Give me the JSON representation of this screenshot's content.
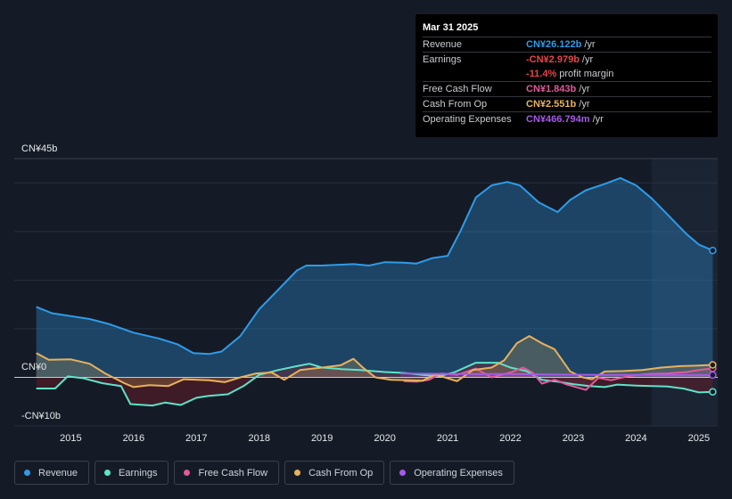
{
  "chart_data": {
    "type": "area",
    "y_axis_labels": {
      "top": "CN¥45b",
      "zero": "CN¥0",
      "bottom": "-CN¥10b"
    },
    "ylim": [
      -10,
      45
    ],
    "x_tick_labels": [
      "2015",
      "2016",
      "2017",
      "2018",
      "2019",
      "2020",
      "2021",
      "2022",
      "2023",
      "2024",
      "2025"
    ],
    "x_ticks": [
      2015,
      2016,
      2017,
      2018,
      2019,
      2020,
      2021,
      2022,
      2023,
      2024,
      2025
    ],
    "xlim": [
      2014.1,
      2025.3
    ],
    "forecast_shade_start": 2024.25,
    "series": [
      {
        "name": "Revenue",
        "color": "#2f9be9",
        "points": [
          [
            2014.45,
            14.5
          ],
          [
            2014.7,
            13.2
          ],
          [
            2015.0,
            12.6
          ],
          [
            2015.3,
            12.0
          ],
          [
            2015.6,
            11.0
          ],
          [
            2016.0,
            9.2
          ],
          [
            2016.4,
            8.0
          ],
          [
            2016.7,
            6.8
          ],
          [
            2016.95,
            5.0
          ],
          [
            2017.2,
            4.8
          ],
          [
            2017.4,
            5.3
          ],
          [
            2017.7,
            8.5
          ],
          [
            2018.0,
            14.0
          ],
          [
            2018.3,
            18.0
          ],
          [
            2018.6,
            22.0
          ],
          [
            2018.75,
            23.0
          ],
          [
            2019.0,
            23.0
          ],
          [
            2019.5,
            23.3
          ],
          [
            2019.75,
            23.0
          ],
          [
            2020.0,
            23.7
          ],
          [
            2020.3,
            23.6
          ],
          [
            2020.5,
            23.4
          ],
          [
            2020.75,
            24.5
          ],
          [
            2021.0,
            25.0
          ],
          [
            2021.2,
            30.0
          ],
          [
            2021.45,
            37.0
          ],
          [
            2021.7,
            39.5
          ],
          [
            2021.95,
            40.2
          ],
          [
            2022.15,
            39.5
          ],
          [
            2022.45,
            36.0
          ],
          [
            2022.75,
            34.0
          ],
          [
            2022.95,
            36.5
          ],
          [
            2023.2,
            38.5
          ],
          [
            2023.5,
            39.8
          ],
          [
            2023.75,
            41.0
          ],
          [
            2024.0,
            39.5
          ],
          [
            2024.25,
            36.8
          ],
          [
            2024.5,
            33.5
          ],
          [
            2024.8,
            29.5
          ],
          [
            2025.0,
            27.3
          ],
          [
            2025.22,
            26.1
          ]
        ]
      },
      {
        "name": "Earnings",
        "color": "#5ee3c9",
        "points": [
          [
            2014.45,
            -2.3
          ],
          [
            2014.75,
            -2.3
          ],
          [
            2014.95,
            0.2
          ],
          [
            2015.2,
            -0.2
          ],
          [
            2015.5,
            -1.2
          ],
          [
            2015.8,
            -1.8
          ],
          [
            2015.95,
            -5.5
          ],
          [
            2016.3,
            -5.8
          ],
          [
            2016.5,
            -5.2
          ],
          [
            2016.75,
            -5.7
          ],
          [
            2017.0,
            -4.2
          ],
          [
            2017.2,
            -3.8
          ],
          [
            2017.5,
            -3.5
          ],
          [
            2017.75,
            -1.8
          ],
          [
            2018.0,
            0.5
          ],
          [
            2018.3,
            1.5
          ],
          [
            2018.6,
            2.3
          ],
          [
            2018.8,
            2.8
          ],
          [
            2019.0,
            2.0
          ],
          [
            2019.3,
            1.7
          ],
          [
            2019.6,
            1.5
          ],
          [
            2019.8,
            1.3
          ],
          [
            2020.0,
            1.1
          ],
          [
            2020.3,
            0.9
          ],
          [
            2020.6,
            0.5
          ],
          [
            2020.85,
            0.2
          ],
          [
            2021.1,
            1.0
          ],
          [
            2021.45,
            3.0
          ],
          [
            2021.8,
            3.0
          ],
          [
            2022.0,
            2.0
          ],
          [
            2022.25,
            1.3
          ],
          [
            2022.5,
            -0.5
          ],
          [
            2022.75,
            -0.9
          ],
          [
            2023.0,
            -1.4
          ],
          [
            2023.25,
            -1.8
          ],
          [
            2023.5,
            -2.0
          ],
          [
            2023.7,
            -1.5
          ],
          [
            2024.0,
            -1.7
          ],
          [
            2024.25,
            -1.8
          ],
          [
            2024.5,
            -1.9
          ],
          [
            2024.75,
            -2.3
          ],
          [
            2025.0,
            -3.1
          ],
          [
            2025.22,
            -2.98
          ]
        ]
      },
      {
        "name": "Free Cash Flow",
        "color": "#e05a9c",
        "points": [
          [
            2020.3,
            -0.8
          ],
          [
            2020.5,
            -0.9
          ],
          [
            2020.7,
            -0.5
          ],
          [
            2020.9,
            0.8
          ],
          [
            2021.15,
            0.5
          ],
          [
            2021.45,
            1.8
          ],
          [
            2021.7,
            0.0
          ],
          [
            2022.0,
            1.0
          ],
          [
            2022.2,
            2.0
          ],
          [
            2022.35,
            1.0
          ],
          [
            2022.5,
            -1.3
          ],
          [
            2022.7,
            -0.5
          ],
          [
            2022.9,
            -1.5
          ],
          [
            2023.2,
            -2.6
          ],
          [
            2023.4,
            -0.1
          ],
          [
            2023.6,
            -0.6
          ],
          [
            2023.9,
            0.3
          ],
          [
            2024.2,
            0.7
          ],
          [
            2024.5,
            0.8
          ],
          [
            2024.8,
            1.1
          ],
          [
            2025.0,
            1.5
          ],
          [
            2025.22,
            1.84
          ]
        ]
      },
      {
        "name": "Cash From Op",
        "color": "#e8b25c",
        "points": [
          [
            2014.45,
            5.0
          ],
          [
            2014.65,
            3.6
          ],
          [
            2015.0,
            3.7
          ],
          [
            2015.3,
            2.8
          ],
          [
            2015.55,
            0.8
          ],
          [
            2015.85,
            -1.2
          ],
          [
            2016.0,
            -2.0
          ],
          [
            2016.25,
            -1.6
          ],
          [
            2016.55,
            -1.8
          ],
          [
            2016.8,
            -0.4
          ],
          [
            2017.2,
            -0.6
          ],
          [
            2017.45,
            -1.0
          ],
          [
            2017.7,
            0.0
          ],
          [
            2017.95,
            0.8
          ],
          [
            2018.2,
            1.0
          ],
          [
            2018.4,
            -0.5
          ],
          [
            2018.65,
            1.5
          ],
          [
            2019.0,
            2.0
          ],
          [
            2019.3,
            2.5
          ],
          [
            2019.5,
            3.8
          ],
          [
            2019.65,
            2.0
          ],
          [
            2019.85,
            0.0
          ],
          [
            2020.1,
            -0.5
          ],
          [
            2020.4,
            -0.6
          ],
          [
            2020.6,
            -0.7
          ],
          [
            2020.8,
            0.6
          ],
          [
            2021.15,
            -0.8
          ],
          [
            2021.4,
            1.5
          ],
          [
            2021.7,
            2.0
          ],
          [
            2021.9,
            3.5
          ],
          [
            2022.1,
            7.0
          ],
          [
            2022.3,
            8.5
          ],
          [
            2022.5,
            7.0
          ],
          [
            2022.7,
            5.8
          ],
          [
            2022.95,
            1.2
          ],
          [
            2023.15,
            0.0
          ],
          [
            2023.3,
            -0.4
          ],
          [
            2023.5,
            1.2
          ],
          [
            2023.8,
            1.3
          ],
          [
            2024.1,
            1.5
          ],
          [
            2024.4,
            2.0
          ],
          [
            2024.7,
            2.3
          ],
          [
            2024.95,
            2.4
          ],
          [
            2025.22,
            2.55
          ]
        ]
      },
      {
        "name": "Operating Expenses",
        "color": "#a55ae8",
        "points": [
          [
            2020.25,
            0.8
          ],
          [
            2020.6,
            0.75
          ],
          [
            2021.0,
            0.7
          ],
          [
            2021.5,
            0.65
          ],
          [
            2022.0,
            0.7
          ],
          [
            2022.5,
            0.6
          ],
          [
            2023.0,
            0.55
          ],
          [
            2023.5,
            0.5
          ],
          [
            2024.0,
            0.5
          ],
          [
            2024.5,
            0.48
          ],
          [
            2025.0,
            0.47
          ],
          [
            2025.22,
            0.467
          ]
        ]
      }
    ]
  },
  "tooltip": {
    "date": "Mar 31 2025",
    "rows": [
      {
        "label": "Revenue",
        "value": "CN¥26.122b",
        "unit": "/yr",
        "color": "#2f9be9"
      },
      {
        "label": "Earnings",
        "value": "-CN¥2.979b",
        "unit": "/yr",
        "color": "#e8454a"
      },
      {
        "label": "",
        "value": "-11.4%",
        "unit": "profit margin",
        "color": "#e8454a"
      },
      {
        "label": "Free Cash Flow",
        "value": "CN¥1.843b",
        "unit": "/yr",
        "color": "#e05a9c"
      },
      {
        "label": "Cash From Op",
        "value": "CN¥2.551b",
        "unit": "/yr",
        "color": "#e8b25c"
      },
      {
        "label": "Operating Expenses",
        "value": "CN¥466.794m",
        "unit": "/yr",
        "color": "#a55ae8"
      }
    ]
  },
  "legend": [
    {
      "label": "Revenue",
      "color": "#2f9be9"
    },
    {
      "label": "Earnings",
      "color": "#5ee3c9"
    },
    {
      "label": "Free Cash Flow",
      "color": "#e05a9c"
    },
    {
      "label": "Cash From Op",
      "color": "#e8b25c"
    },
    {
      "label": "Operating Expenses",
      "color": "#a55ae8"
    }
  ]
}
